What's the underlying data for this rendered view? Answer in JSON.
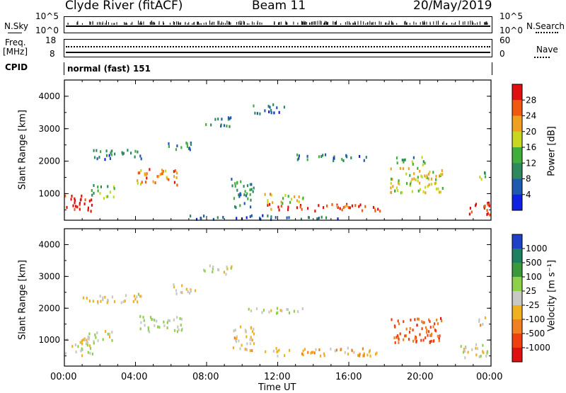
{
  "header": {
    "station": "Clyde River (fitACF)",
    "beam": "Beam 11",
    "date": "20/May/2019"
  },
  "strip": {
    "left": {
      "nsky_label": "N.Sky",
      "nsky_ticks": [
        "10^5",
        "10^0"
      ],
      "freq_label": "Freq.",
      "freq_unit": "[MHz]",
      "freq_ticks": [
        "18",
        "8"
      ],
      "cpid_label": "CPID"
    },
    "right": {
      "nsearch_label": "N.Search",
      "nsearch_ticks": [
        "10^5",
        "10^0"
      ],
      "nave_label": "Nave",
      "nave_ticks": [
        "60",
        "0"
      ]
    },
    "cpid_text": "normal (fast) 151"
  },
  "chart_data": [
    {
      "type": "heatmap",
      "ylabel": "Slant Range [km]",
      "yticks": [
        "1000",
        "2000",
        "3000",
        "4000"
      ],
      "ylim": [
        180,
        4500
      ],
      "colorbar": {
        "label": "Power [dB]",
        "ticks": [
          "4",
          "8",
          "12",
          "16",
          "20",
          "24",
          "28"
        ],
        "range": [
          0,
          30
        ],
        "colors": [
          "#1020e0",
          "#1d5ab0",
          "#2e8a5c",
          "#3fae3a",
          "#c8d820",
          "#f0a020",
          "#f05a10",
          "#e01010"
        ]
      },
      "blobs": [
        {
          "t": 0.8,
          "r": 700,
          "dt": 1.6,
          "dr": 550,
          "v": 28
        },
        {
          "t": 2.2,
          "r": 1050,
          "dt": 1.4,
          "dr": 400,
          "v": 14
        },
        {
          "t": 5.2,
          "r": 1500,
          "dt": 2.4,
          "dr": 500,
          "v": 22
        },
        {
          "t": 2.8,
          "r": 2200,
          "dt": 3.0,
          "dr": 300,
          "v": 8
        },
        {
          "t": 6.4,
          "r": 2500,
          "dt": 1.5,
          "dr": 300,
          "v": 10
        },
        {
          "t": 8.6,
          "r": 3200,
          "dt": 1.6,
          "dr": 300,
          "v": 9
        },
        {
          "t": 11.5,
          "r": 3600,
          "dt": 1.8,
          "dr": 300,
          "v": 8
        },
        {
          "t": 10.0,
          "r": 1000,
          "dt": 1.3,
          "dr": 900,
          "v": 10
        },
        {
          "t": 14.5,
          "r": 560,
          "dt": 6.5,
          "dr": 220,
          "v": 27
        },
        {
          "t": 12.3,
          "r": 850,
          "dt": 2.2,
          "dr": 300,
          "v": 18
        },
        {
          "t": 19.8,
          "r": 1400,
          "dt": 3.0,
          "dr": 800,
          "v": 18
        },
        {
          "t": 19.5,
          "r": 2000,
          "dt": 1.8,
          "dr": 250,
          "v": 12
        },
        {
          "t": 23.3,
          "r": 550,
          "dt": 1.3,
          "dr": 450,
          "v": 28
        },
        {
          "t": 23.5,
          "r": 1550,
          "dt": 0.6,
          "dr": 300,
          "v": 15
        },
        {
          "t": 15.0,
          "r": 2100,
          "dt": 4.0,
          "dr": 200,
          "v": 8
        },
        {
          "t": 11.0,
          "r": 260,
          "dt": 9.0,
          "dr": 120,
          "v": 6
        }
      ]
    },
    {
      "type": "heatmap",
      "ylabel": "Slant Range [km]",
      "yticks": [
        "1000",
        "2000",
        "3000",
        "4000"
      ],
      "ylim": [
        180,
        4500
      ],
      "colorbar": {
        "label": "Velocity [m s⁻¹]",
        "ticks": [
          "1000",
          "500",
          "100",
          "25",
          "-25",
          "-100",
          "-500",
          "-1000"
        ],
        "range": [
          -1200,
          1200
        ],
        "colors": [
          "#2040c8",
          "#1d8060",
          "#3a9a3a",
          "#8ed04a",
          "#c8c8c4",
          "#f0b020",
          "#f08020",
          "#f04010",
          "#e01010"
        ]
      },
      "blobs": [
        {
          "t": 0.8,
          "r": 800,
          "dt": 1.6,
          "dr": 600,
          "v": 0
        },
        {
          "t": 2.0,
          "r": 1100,
          "dt": 1.4,
          "dr": 400,
          "v": 80
        },
        {
          "t": 5.4,
          "r": 1500,
          "dt": 2.4,
          "dr": 500,
          "v": 150
        },
        {
          "t": 3.0,
          "r": 2300,
          "dt": 3.0,
          "dr": 300,
          "v": -80
        },
        {
          "t": 6.6,
          "r": 2600,
          "dt": 1.5,
          "dr": 300,
          "v": -150
        },
        {
          "t": 8.6,
          "r": 3200,
          "dt": 1.6,
          "dr": 300,
          "v": 0
        },
        {
          "t": 10.0,
          "r": 1000,
          "dt": 1.3,
          "dr": 900,
          "v": -200
        },
        {
          "t": 14.5,
          "r": 620,
          "dt": 6.5,
          "dr": 260,
          "v": -300
        },
        {
          "t": 11.8,
          "r": 1900,
          "dt": 3.2,
          "dr": 200,
          "v": 0
        },
        {
          "t": 19.8,
          "r": 1300,
          "dt": 3.0,
          "dr": 800,
          "v": -700
        },
        {
          "t": 23.0,
          "r": 650,
          "dt": 1.6,
          "dr": 450,
          "v": 0
        },
        {
          "t": 23.5,
          "r": 1550,
          "dt": 0.6,
          "dr": 300,
          "v": -200
        },
        {
          "t": 1.2,
          "r": 2300,
          "dt": 0.5,
          "dr": 200,
          "v": -250
        }
      ]
    }
  ],
  "time_axis": {
    "ticks": [
      "00:00",
      "04:00",
      "08:00",
      "12:00",
      "16:00",
      "20:00",
      "00:00"
    ],
    "xlabel": "Time UT",
    "xlim": [
      0,
      24
    ]
  }
}
